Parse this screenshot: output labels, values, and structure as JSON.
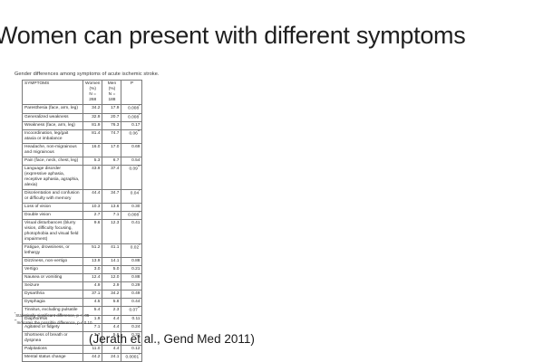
{
  "slide": {
    "title": "Women can present with different symptoms",
    "citation": "(Jerath et al., Gend Med 2011)"
  },
  "table": {
    "caption": "Gender differences among symptoms of acute ischemic stroke.",
    "columns": [
      "SYMPTOMS",
      "Women\n(%)\nN = 268",
      "Men\n(%)\nN = 188",
      "P"
    ],
    "rows": [
      {
        "symptom": "Paresthesia (face, arm, leg)",
        "women": "34.2",
        "men": "17.9",
        "p": "0.008",
        "mark": "*"
      },
      {
        "symptom": "Generalized weakness",
        "women": "32.9",
        "men": "20.7",
        "p": "0.008",
        "mark": "*"
      },
      {
        "symptom": "Weakness (face, arm, leg)",
        "women": "81.9",
        "men": "76.3",
        "p": "0.17",
        "mark": ""
      },
      {
        "symptom": "Incoordination, leg/gait ataxia or imbalance",
        "women": "81.4",
        "men": "74.7",
        "p": "0.06",
        "mark": "**"
      },
      {
        "symptom": "Headache, non-migrainous and migrainous",
        "women": "16.0",
        "men": "17.0",
        "p": "0.69",
        "mark": ""
      },
      {
        "symptom": "Pain (face, neck, chest, leg)",
        "women": "5.3",
        "men": "6.7",
        "p": "0.54",
        "mark": ""
      },
      {
        "symptom": "Language disorder (expressive aphasia, receptive aphasia, agraphia, alexia)",
        "women": "43.9",
        "men": "37.4",
        "p": "0.09",
        "mark": "**"
      },
      {
        "symptom": "Disorientation and confusion or difficulty with memory",
        "women": "44.4",
        "men": "34.7",
        "p": "0.04",
        "mark": "*"
      },
      {
        "symptom": "Loss of vision",
        "women": "10.3",
        "men": "13.6",
        "p": "0.30",
        "mark": ""
      },
      {
        "symptom": "Double vision",
        "women": "2.7",
        "men": "7.1",
        "p": "0.008",
        "mark": "*"
      },
      {
        "symptom": "Visual disturbances (blurry vision, difficulty focusing, photophobia and visual field impairment)",
        "women": "9.6",
        "men": "12.3",
        "p": "0.41",
        "mark": ""
      },
      {
        "symptom": "Fatigue, drowsiness, or lethargy",
        "women": "51.2",
        "men": "41.1",
        "p": "0.02",
        "mark": "*"
      },
      {
        "symptom": "Dizziness, non-vertigo",
        "women": "13.9",
        "men": "14.1",
        "p": "0.88",
        "mark": ""
      },
      {
        "symptom": "Vertigo",
        "women": "3.0",
        "men": "5.0",
        "p": "0.21",
        "mark": ""
      },
      {
        "symptom": "Nausea or vomiting",
        "women": "12.4",
        "men": "12.0",
        "p": "0.88",
        "mark": ""
      },
      {
        "symptom": "Seizure",
        "women": "4.9",
        "men": "2.9",
        "p": "0.29",
        "mark": ""
      },
      {
        "symptom": "Dysarthria",
        "women": "37.1",
        "men": "34.2",
        "p": "0.49",
        "mark": ""
      },
      {
        "symptom": "Dysphagia",
        "women": "4.5",
        "men": "5.8",
        "p": "0.44",
        "mark": ""
      },
      {
        "symptom": "Tinnitus, excluding pulsatile",
        "women": "5.4",
        "men": "2.3",
        "p": "0.07",
        "mark": "**"
      },
      {
        "symptom": "Diaphoresis",
        "women": "1.9",
        "men": "4.4",
        "p": "0.11",
        "mark": ""
      },
      {
        "symptom": "Agitated or fidgety",
        "women": "7.1",
        "men": "4.4",
        "p": "0.24",
        "mark": ""
      },
      {
        "symptom": "Shortness of breath or dyspnea",
        "women": "3.7",
        "men": "5.6",
        "p": "0.32",
        "mark": ""
      },
      {
        "symptom": "Palpitations",
        "women": "11.0",
        "men": "4.4",
        "p": "0.12",
        "mark": ""
      },
      {
        "symptom": "Mental status change",
        "women": "44.2",
        "men": "24.1",
        "p": "0.0001",
        "mark": "*"
      }
    ],
    "footnotes": [
      {
        "mark": "*",
        "text": "Statistically significant difference, p < .05"
      },
      {
        "mark": "**",
        "text": "Indicates the possible difference, p < 0.10"
      }
    ]
  }
}
